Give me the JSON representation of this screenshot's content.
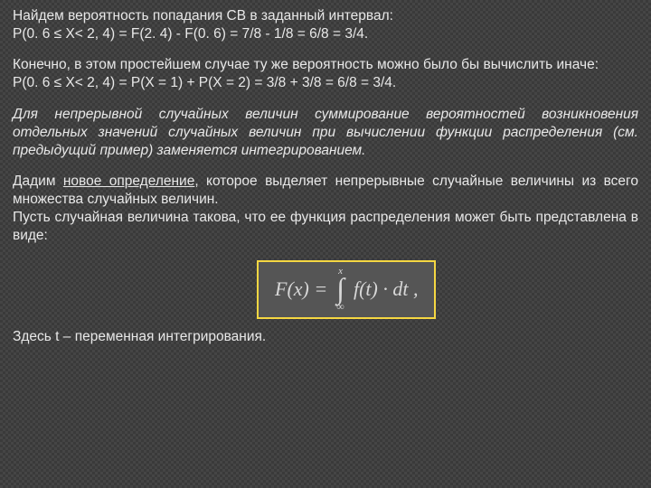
{
  "p1_line1": "Найдем вероятность попадания СВ в заданный интервал:",
  "p1_line2": "P(0. 6 ≤ X< 2, 4) = F(2. 4) - F(0. 6) = 7/8 - 1/8 = 6/8 = 3/4.",
  "p2_line1": "Конечно, в этом простейшем случае ту же вероятность можно было бы вычислить иначе:",
  "p2_line2": "P(0. 6 ≤ X< 2, 4) = P(X = 1) + P(X = 2) = 3/8 + 3/8 = 6/8 = 3/4.",
  "p3": "Для непрерывной случайных величин суммирование вероятностей возникновения отдельных значений случайных величин при вычислении функции распределения (см. предыдущий пример) заменяется интегрированием.",
  "p4_a": "Дадим ",
  "p4_b": "новое определение",
  "p4_c": ", которое выделяет непрерывные случайные величины из всего множества случайных величин.",
  "p4_line2": " Пусть случайная величина такова, что ее функция распределения может быть представлена в виде:",
  "formula": {
    "lhs": "F(x) =",
    "int_top": "x",
    "int_bot": "∞",
    "rhs": "f(t) · dt ,"
  },
  "p5": "Здесь t – переменная интегрирования.",
  "colors": {
    "text": "#e8e8e8",
    "bg_dark": "#3a3a3a",
    "bg_light": "#454545",
    "formula_border": "#f5d742",
    "formula_bg": "#555555"
  },
  "fontsize_body": 15.5,
  "fontsize_formula": 22
}
